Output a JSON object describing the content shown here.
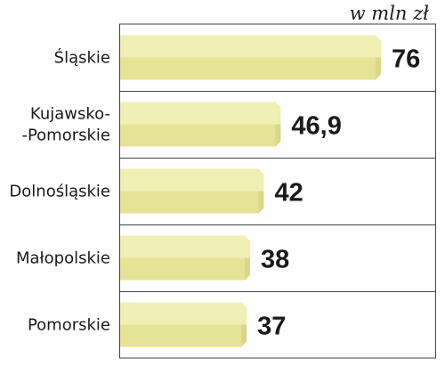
{
  "chart_data": {
    "type": "bar",
    "orientation": "horizontal",
    "unit": "w mln zł",
    "categories": [
      [
        "Śląskie"
      ],
      [
        "Kujawsko-",
        "-Pomorskie"
      ],
      [
        "Dolnośląskie"
      ],
      [
        "Małopolskie"
      ],
      [
        "Pomorskie"
      ]
    ],
    "values": [
      76,
      46.9,
      42,
      38,
      37
    ],
    "value_labels": [
      "76",
      "46,9",
      "42",
      "38",
      "37"
    ],
    "colors": {
      "bar_top": "#f0efb4",
      "bar_bottom": "#e5e496",
      "bar_edge": "#d8d78a",
      "divider": "#444444",
      "text": "#1a1a1a"
    }
  }
}
